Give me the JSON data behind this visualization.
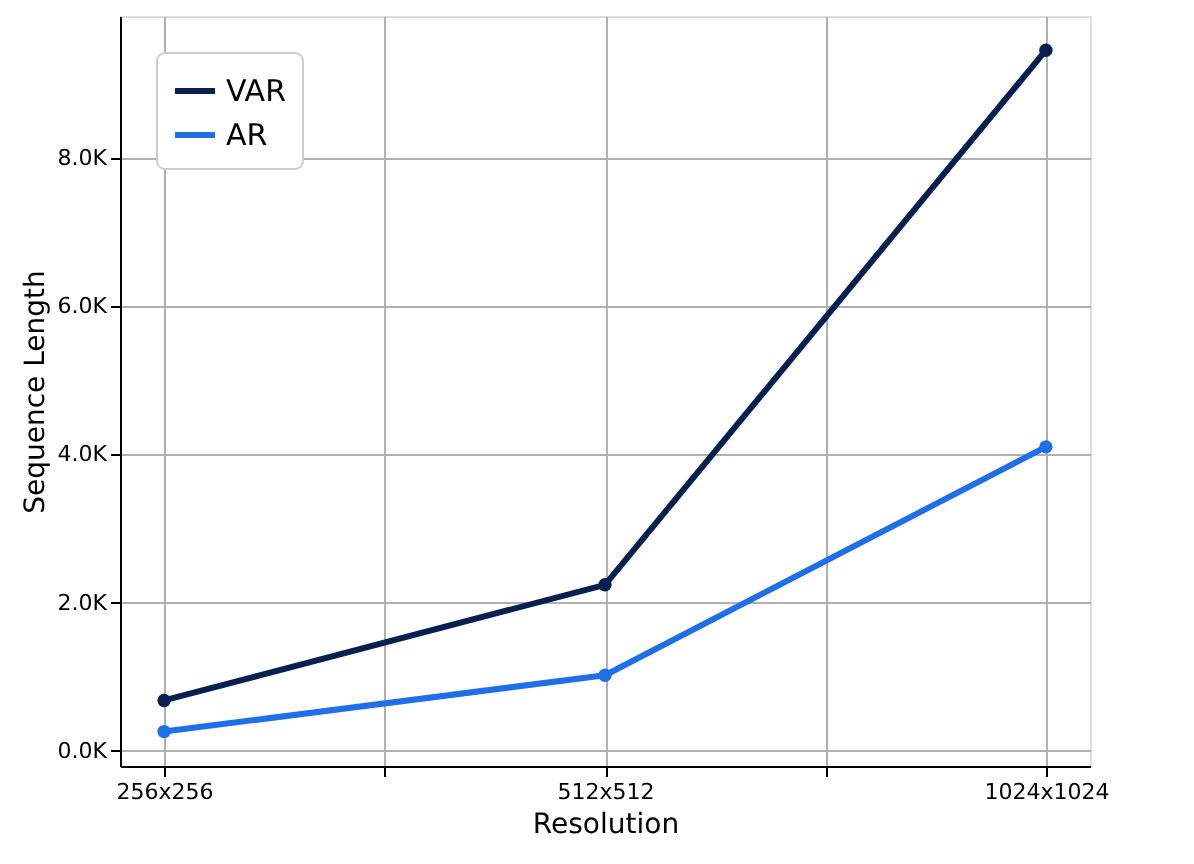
{
  "chart_data": {
    "type": "line",
    "xlabel": "Resolution",
    "ylabel": "Sequence Length",
    "categories": [
      "256x256",
      "512x512",
      "1024x1024"
    ],
    "ylim": [
      -204,
      9911
    ],
    "yticks": [
      {
        "value": 0,
        "label": "0.0K"
      },
      {
        "value": 2000,
        "label": "2.0K"
      },
      {
        "value": 4000,
        "label": "4.0K"
      },
      {
        "value": 6000,
        "label": "6.0K"
      },
      {
        "value": 8000,
        "label": "8.0K"
      }
    ],
    "series": [
      {
        "name": "VAR",
        "color": "#08204f",
        "values": [
          680,
          2240,
          9450
        ]
      },
      {
        "name": "AR",
        "color": "#1f6fe8",
        "values": [
          260,
          1020,
          4100
        ]
      }
    ],
    "marker": "circle",
    "line_style": "solid",
    "grid": true,
    "legend": "top left"
  }
}
